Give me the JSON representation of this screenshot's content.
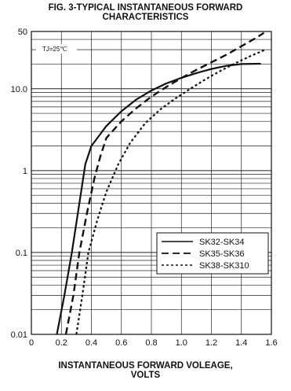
{
  "chart_data": {
    "type": "line",
    "title_line1": "FIG. 3-TYPICAL INSTANTANEOUS FORWARD",
    "title_line2": "CHARACTERISTICS",
    "xlabel_line1": "INSTANTANEOUS FORWARD VOLEAGE,",
    "xlabel_line2": "VOLTS",
    "ylabel": "",
    "annotation": "TJ=25℃",
    "xlim": [
      0,
      1.6
    ],
    "ylim": [
      0.01,
      50
    ],
    "yscale": "log",
    "grid": true,
    "legend_position": "lower-right",
    "x_ticks": [
      "0",
      "0.2",
      "0.4",
      "0.6",
      "0.8",
      "1.0",
      "1.2",
      "1.4",
      "1.6"
    ],
    "y_ticks": [
      "0.01",
      "0.1",
      "1",
      "10.0",
      "50"
    ],
    "series": [
      {
        "name": "SK32-SK34",
        "style": "solid",
        "points": [
          [
            0.17,
            0.01
          ],
          [
            0.22,
            0.03
          ],
          [
            0.27,
            0.1
          ],
          [
            0.32,
            0.4
          ],
          [
            0.36,
            1.2
          ],
          [
            0.4,
            2.0
          ],
          [
            0.5,
            3.5
          ],
          [
            0.6,
            5.3
          ],
          [
            0.7,
            7.4
          ],
          [
            0.8,
            9.5
          ],
          [
            0.9,
            11.6
          ],
          [
            1.0,
            13.6
          ],
          [
            1.1,
            15.5
          ],
          [
            1.2,
            17.4
          ],
          [
            1.3,
            19.0
          ],
          [
            1.4,
            20.0
          ],
          [
            1.53,
            20.2
          ]
        ]
      },
      {
        "name": "SK35-SK36",
        "style": "dashed",
        "points": [
          [
            0.23,
            0.01
          ],
          [
            0.28,
            0.03
          ],
          [
            0.32,
            0.1
          ],
          [
            0.37,
            0.3
          ],
          [
            0.42,
            0.8
          ],
          [
            0.46,
            1.5
          ],
          [
            0.5,
            2.5
          ],
          [
            0.6,
            4.0
          ],
          [
            0.7,
            5.8
          ],
          [
            0.8,
            8.0
          ],
          [
            0.9,
            10.5
          ],
          [
            1.0,
            13.5
          ],
          [
            1.1,
            17.0
          ],
          [
            1.2,
            21.0
          ],
          [
            1.3,
            26.0
          ],
          [
            1.4,
            33.0
          ],
          [
            1.5,
            42.0
          ],
          [
            1.55,
            48.0
          ]
        ]
      },
      {
        "name": "SK38-SK310",
        "style": "dotted",
        "points": [
          [
            0.3,
            0.01
          ],
          [
            0.34,
            0.03
          ],
          [
            0.38,
            0.1
          ],
          [
            0.44,
            0.25
          ],
          [
            0.5,
            0.55
          ],
          [
            0.58,
            1.2
          ],
          [
            0.66,
            2.2
          ],
          [
            0.76,
            3.8
          ],
          [
            0.86,
            5.6
          ],
          [
            0.96,
            7.6
          ],
          [
            1.06,
            10.0
          ],
          [
            1.16,
            13.0
          ],
          [
            1.26,
            16.5
          ],
          [
            1.36,
            20.5
          ],
          [
            1.46,
            25.0
          ],
          [
            1.56,
            30.0
          ]
        ]
      }
    ]
  }
}
